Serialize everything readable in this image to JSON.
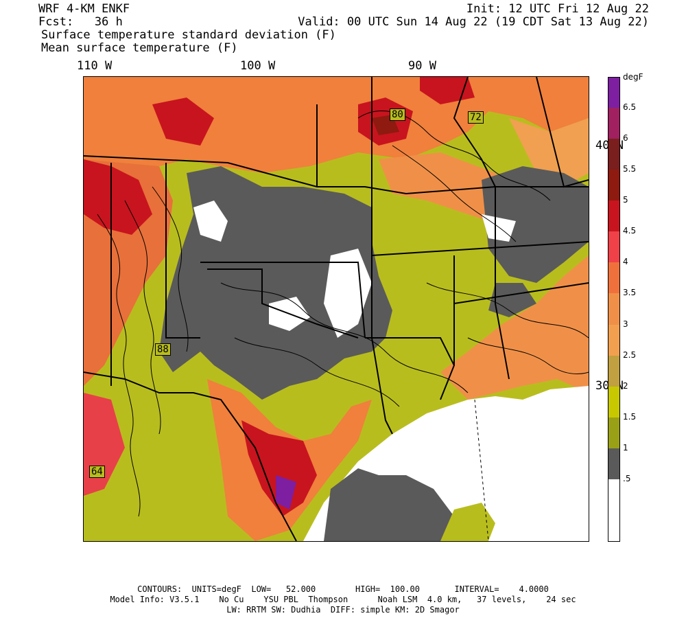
{
  "header": {
    "model": "WRF 4-KM ENKF",
    "fcst": "Fcst:   36 h",
    "init": "Init: 12 UTC Fri 12 Aug 22",
    "valid": "Valid: 00 UTC Sun 14 Aug 22 (19 CDT Sat 13 Aug 22)",
    "field1": "Surface temperature standard deviation (F)",
    "field2": "Mean surface temperature (F)"
  },
  "axes": {
    "lon_labels": [
      "110 W",
      "100 W",
      "90 W"
    ],
    "lat_labels": [
      "40 N",
      "30 N"
    ]
  },
  "colorbar": {
    "units": "degF",
    "labels": [
      "6.5",
      "6",
      "5.5",
      "5",
      "4.5",
      "4",
      "3.5",
      "3",
      "2.5",
      "2",
      "1.5",
      "1",
      ".5"
    ],
    "colors": [
      "#7d1fa0",
      "#a02060",
      "#7a1e1e",
      "#8e1a10",
      "#c8141e",
      "#f04048",
      "#f0703c",
      "#f09048",
      "#f2a050",
      "#c0a040",
      "#c8c800",
      "#9aa015",
      "#5a5a5a",
      "#ffffff",
      "#ffffff"
    ]
  },
  "map": {
    "contour_labels": [
      "80",
      "72",
      "88",
      "64"
    ]
  },
  "footer": {
    "line1": "CONTOURS:  UNITS=degF  LOW=   52.000        HIGH=  100.00       INTERVAL=    4.0000",
    "line2": "Model Info: V3.5.1    No Cu    YSU PBL  Thompson      Noah LSM  4.0 km,   37 levels,    24 sec",
    "line3": "LW: RRTM SW: Dudhia  DIFF: simple KM: 2D Smagor"
  }
}
